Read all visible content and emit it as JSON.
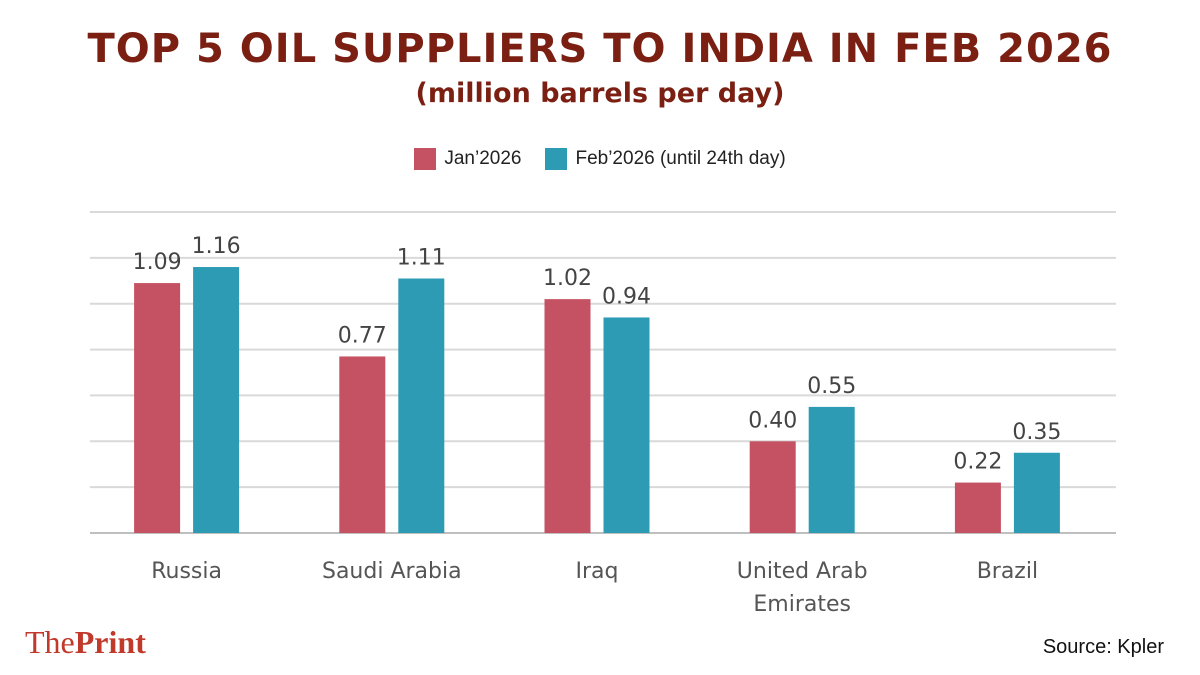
{
  "colors": {
    "title": "#7a1f12",
    "jan": "#c45263",
    "feb": "#2e9bb4",
    "brand": "#c0392b"
  },
  "header": {
    "title": "TOP 5 OIL SUPPLIERS TO INDIA IN FEB 2026",
    "subtitle": "(million barrels per day)"
  },
  "chart_data": {
    "type": "bar",
    "categories": [
      [
        "Russia"
      ],
      [
        "Saudi Arabia"
      ],
      [
        "Iraq"
      ],
      [
        "United Arab",
        "Emirates"
      ],
      [
        "Brazil"
      ]
    ],
    "series": [
      {
        "name": "Jan’2026",
        "values": [
          1.09,
          0.77,
          1.02,
          0.4,
          0.22
        ]
      },
      {
        "name": "Feb’2026 (until 24th day)",
        "values": [
          1.16,
          1.11,
          0.94,
          0.55,
          0.35
        ]
      }
    ],
    "data_labels": [
      [
        "1.09",
        "0.77",
        "1.02",
        "0.40",
        "0.22"
      ],
      [
        "1.16",
        "1.11",
        "0.94",
        "0.55",
        "0.35"
      ]
    ],
    "ylim": [
      0,
      1.4
    ],
    "grid": true,
    "legend_position": "top-center"
  },
  "footer": {
    "brand_part1": "The",
    "brand_part2": "Print",
    "source": "Source: Kpler"
  }
}
